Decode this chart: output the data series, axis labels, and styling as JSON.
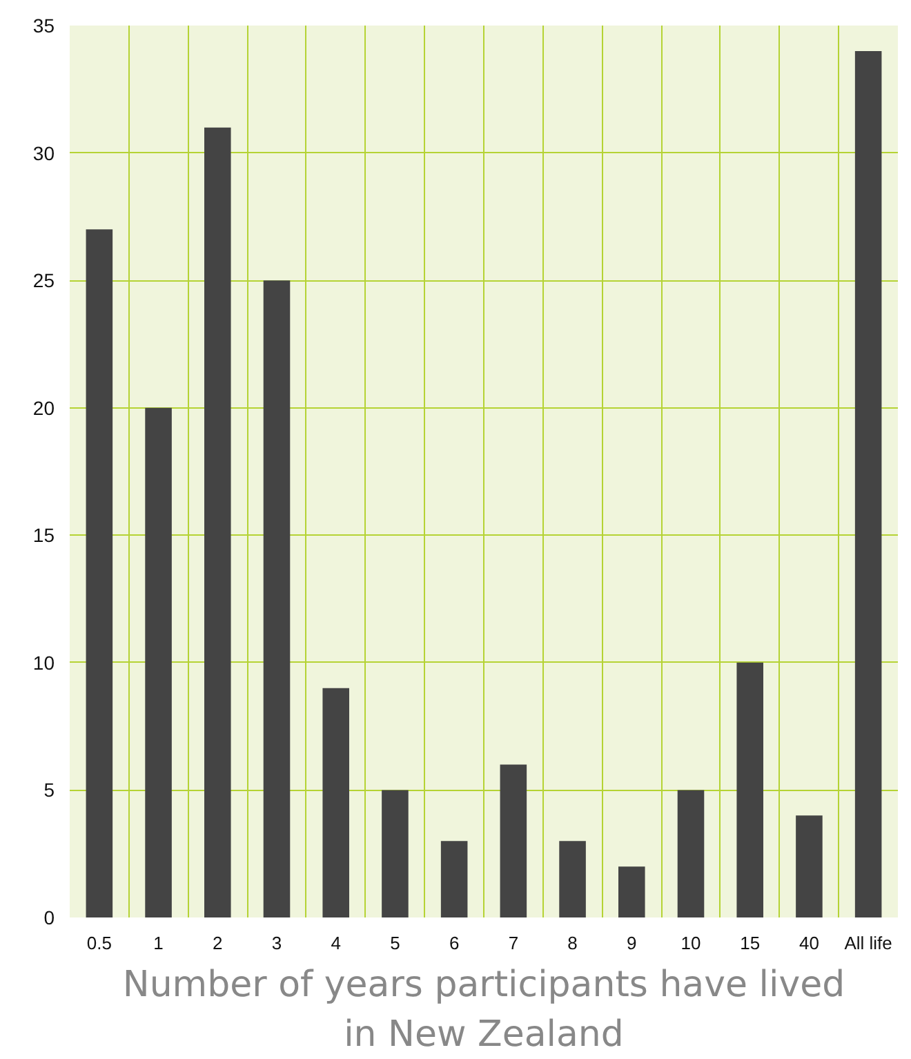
{
  "chart_data": {
    "type": "bar",
    "xlabel": "Number of years participants have lived in New Zealand",
    "categories": [
      "0.5",
      "1",
      "2",
      "3",
      "4",
      "5",
      "6",
      "7",
      "8",
      "9",
      "10",
      "15",
      "40",
      "All life"
    ],
    "values": [
      27,
      20,
      31,
      25,
      9,
      5,
      3,
      6,
      3,
      2,
      5,
      10,
      4,
      34
    ],
    "color": "#444444",
    "ylim": [
      0,
      35
    ],
    "yticks": [
      0,
      5,
      10,
      15,
      20,
      25,
      30,
      35
    ],
    "grid": true
  }
}
